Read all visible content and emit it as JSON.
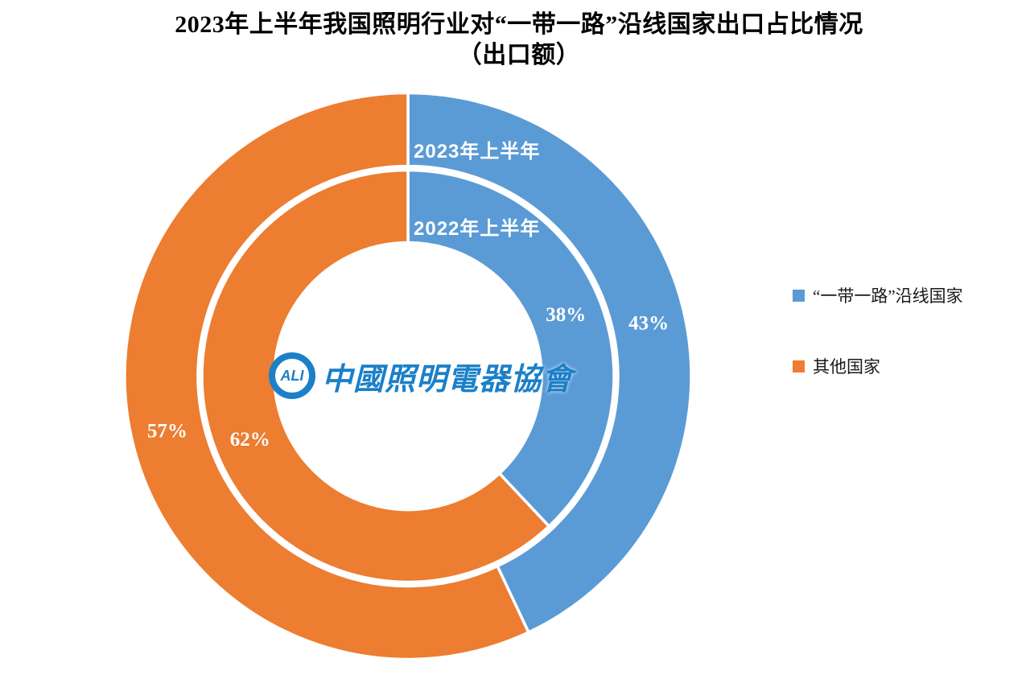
{
  "title": {
    "line1": "2023年上半年我国照明行业对“一带一路”沿线国家出口占比情况",
    "line2": "（出口额）"
  },
  "legend": {
    "position": "right",
    "items": [
      {
        "label": "“一带一路”沿线国家",
        "color": "#5B9BD5"
      },
      {
        "label": "其他国家",
        "color": "#ED7D31"
      }
    ]
  },
  "watermark": {
    "emblem_text": "ALI",
    "text": "中國照明電器協會",
    "color": "#1B80C8"
  },
  "chart_data": {
    "type": "pie",
    "subtype": "concentric-double-donut",
    "title": "2023年上半年我国照明行业对“一带一路”沿线国家出口占比情况（出口额）",
    "categories": [
      "“一带一路”沿线国家",
      "其他国家"
    ],
    "colors": [
      "#5B9BD5",
      "#ED7D31"
    ],
    "rings": [
      {
        "name": "2023年上半年",
        "position": "outer",
        "values": [
          43,
          57
        ],
        "labels": [
          "43%",
          "57%"
        ]
      },
      {
        "name": "2022年上半年",
        "position": "inner",
        "values": [
          38,
          62
        ],
        "labels": [
          "38%",
          "62%"
        ]
      }
    ],
    "start_angle_deg": 0,
    "direction": "clockwise",
    "slice_border_color": "#ffffff",
    "label_color": "#ffffff",
    "legend_position": "right",
    "grid": false
  }
}
